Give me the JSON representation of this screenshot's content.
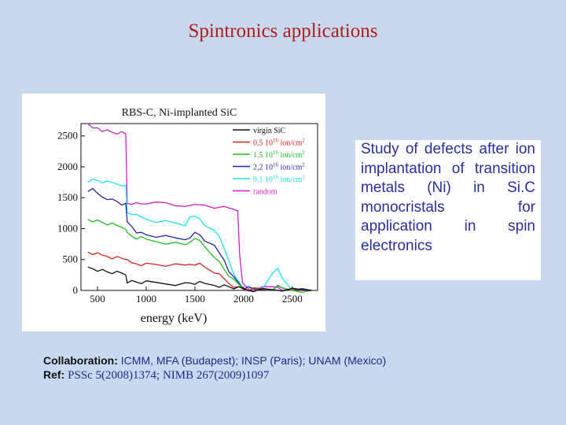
{
  "slide": {
    "title": "Spintronics applications"
  },
  "description": "Study of defects after ion implantation of transition metals (Ni) in Si.C monocristals for application in spin electronics",
  "collaboration": {
    "label": "Collaboration:",
    "text": "ICMM, MFA (Budapest); INSP (Paris); UNAM (Mexico)"
  },
  "reference": {
    "label": "Ref:",
    "text": "PSSc 5(2008)1374; NIMB 267(2009)1097"
  },
  "chart_data": {
    "type": "line",
    "title": "RBS-C, Ni-implanted SiC",
    "xlabel": "energy (keV)",
    "ylabel": "",
    "xlim": [
      330,
      2760
    ],
    "ylim": [
      0,
      2700
    ],
    "xticks": [
      500,
      1000,
      1500,
      2000,
      2500
    ],
    "yticks": [
      0,
      500,
      1000,
      1500,
      2000,
      2500
    ],
    "legend_position": "top-right",
    "series": [
      {
        "name": "random",
        "legend": "random",
        "color": "#d21fcf",
        "x": [
          400,
          450,
          500,
          550,
          600,
          650,
          700,
          750,
          790,
          805,
          850,
          900,
          950,
          1000,
          1100,
          1200,
          1300,
          1400,
          1500,
          1600,
          1700,
          1800,
          1900,
          1940,
          1960,
          1990,
          2050,
          2100,
          2200,
          2300,
          2350,
          2400,
          2500,
          2600,
          2700
        ],
        "y": [
          2700,
          2620,
          2640,
          2600,
          2580,
          2560,
          2550,
          2540,
          2520,
          1420,
          1420,
          1400,
          1400,
          1420,
          1400,
          1410,
          1380,
          1390,
          1370,
          1380,
          1350,
          1330,
          1300,
          1300,
          600,
          100,
          20,
          20,
          30,
          50,
          60,
          30,
          10,
          0,
          0
        ]
      },
      {
        "name": "9,1 10^16 ion/cm^2",
        "legend": "9,1 10",
        "color": "#21e1e6",
        "x": [
          400,
          450,
          500,
          550,
          600,
          650,
          700,
          750,
          790,
          805,
          850,
          900,
          950,
          1000,
          1100,
          1200,
          1300,
          1400,
          1450,
          1500,
          1550,
          1600,
          1700,
          1750,
          1800,
          1850,
          1900,
          1950,
          2000,
          2050,
          2100,
          2200,
          2300,
          2350,
          2400,
          2500,
          2600,
          2700
        ],
        "y": [
          1750,
          1780,
          1780,
          1760,
          1740,
          1740,
          1730,
          1720,
          1680,
          1260,
          1250,
          1200,
          1180,
          1160,
          1130,
          1110,
          1090,
          1070,
          1160,
          1190,
          1170,
          1080,
          950,
          880,
          700,
          450,
          250,
          150,
          50,
          30,
          20,
          60,
          250,
          350,
          200,
          30,
          10,
          0
        ]
      },
      {
        "name": "2,2 10^16 ion/cm^2",
        "legend": "2,2 10",
        "color": "#2626aa",
        "x": [
          400,
          450,
          500,
          550,
          600,
          650,
          700,
          750,
          790,
          805,
          850,
          900,
          950,
          1000,
          1100,
          1200,
          1300,
          1400,
          1450,
          1500,
          1550,
          1600,
          1700,
          1750,
          1800,
          1850,
          1900,
          1950,
          2000,
          2050,
          2100,
          2200,
          2300,
          2350,
          2400,
          2500,
          2600,
          2700
        ],
        "y": [
          1600,
          1620,
          1560,
          1520,
          1500,
          1460,
          1440,
          1400,
          1380,
          1100,
          1050,
          960,
          920,
          900,
          880,
          860,
          840,
          830,
          880,
          920,
          900,
          820,
          700,
          600,
          500,
          330,
          200,
          120,
          40,
          30,
          20,
          20,
          40,
          60,
          40,
          20,
          0,
          0
        ]
      },
      {
        "name": "1,5 10^16 ion/cm^2",
        "legend": "1,5 10",
        "color": "#1fc21f",
        "x": [
          400,
          450,
          500,
          550,
          600,
          650,
          700,
          750,
          790,
          805,
          850,
          900,
          950,
          1000,
          1100,
          1200,
          1300,
          1400,
          1450,
          1500,
          1550,
          1600,
          1700,
          1750,
          1800,
          1850,
          1900,
          1950,
          2000,
          2050,
          2100,
          2200,
          2300,
          2350,
          2400,
          2500,
          2600,
          2700
        ],
        "y": [
          1150,
          1140,
          1120,
          1100,
          1080,
          1060,
          1040,
          1030,
          1020,
          920,
          880,
          850,
          840,
          820,
          800,
          780,
          760,
          740,
          800,
          810,
          800,
          720,
          560,
          450,
          340,
          250,
          150,
          90,
          30,
          20,
          20,
          20,
          30,
          40,
          30,
          10,
          0,
          0
        ]
      },
      {
        "name": "0,5 10^16 ion/cm^2",
        "legend": "0,5 10",
        "color": "#d82222",
        "x": [
          400,
          450,
          500,
          550,
          600,
          650,
          700,
          750,
          790,
          805,
          850,
          900,
          950,
          1000,
          1100,
          1200,
          1300,
          1400,
          1450,
          1500,
          1550,
          1600,
          1700,
          1750,
          1800,
          1850,
          1900,
          1950,
          2000,
          2050,
          2100,
          2200,
          2300,
          2400,
          2500,
          2600,
          2700
        ],
        "y": [
          620,
          600,
          580,
          560,
          560,
          540,
          530,
          520,
          520,
          470,
          440,
          440,
          430,
          420,
          420,
          410,
          400,
          400,
          430,
          440,
          420,
          380,
          300,
          240,
          180,
          120,
          80,
          40,
          20,
          10,
          10,
          20,
          20,
          20,
          10,
          0,
          0
        ]
      },
      {
        "name": "virgin SiC",
        "legend": "virgin SiC",
        "color": "#111111",
        "x": [
          400,
          450,
          500,
          550,
          600,
          650,
          700,
          750,
          790,
          805,
          850,
          900,
          950,
          1000,
          1100,
          1200,
          1300,
          1400,
          1450,
          1500,
          1550,
          1600,
          1700,
          1750,
          1800,
          1850,
          1900,
          1950,
          2000,
          2050,
          2100,
          2200,
          2300,
          2400,
          2500,
          2600,
          2700
        ],
        "y": [
          380,
          360,
          340,
          320,
          300,
          290,
          280,
          270,
          260,
          150,
          140,
          135,
          130,
          125,
          120,
          115,
          110,
          105,
          120,
          120,
          115,
          105,
          90,
          80,
          70,
          60,
          45,
          30,
          20,
          10,
          10,
          10,
          10,
          10,
          5,
          0,
          0
        ]
      }
    ],
    "legend_suffix": {
      "base": "16",
      "unit": " ion/cm",
      "exp": "2"
    }
  }
}
